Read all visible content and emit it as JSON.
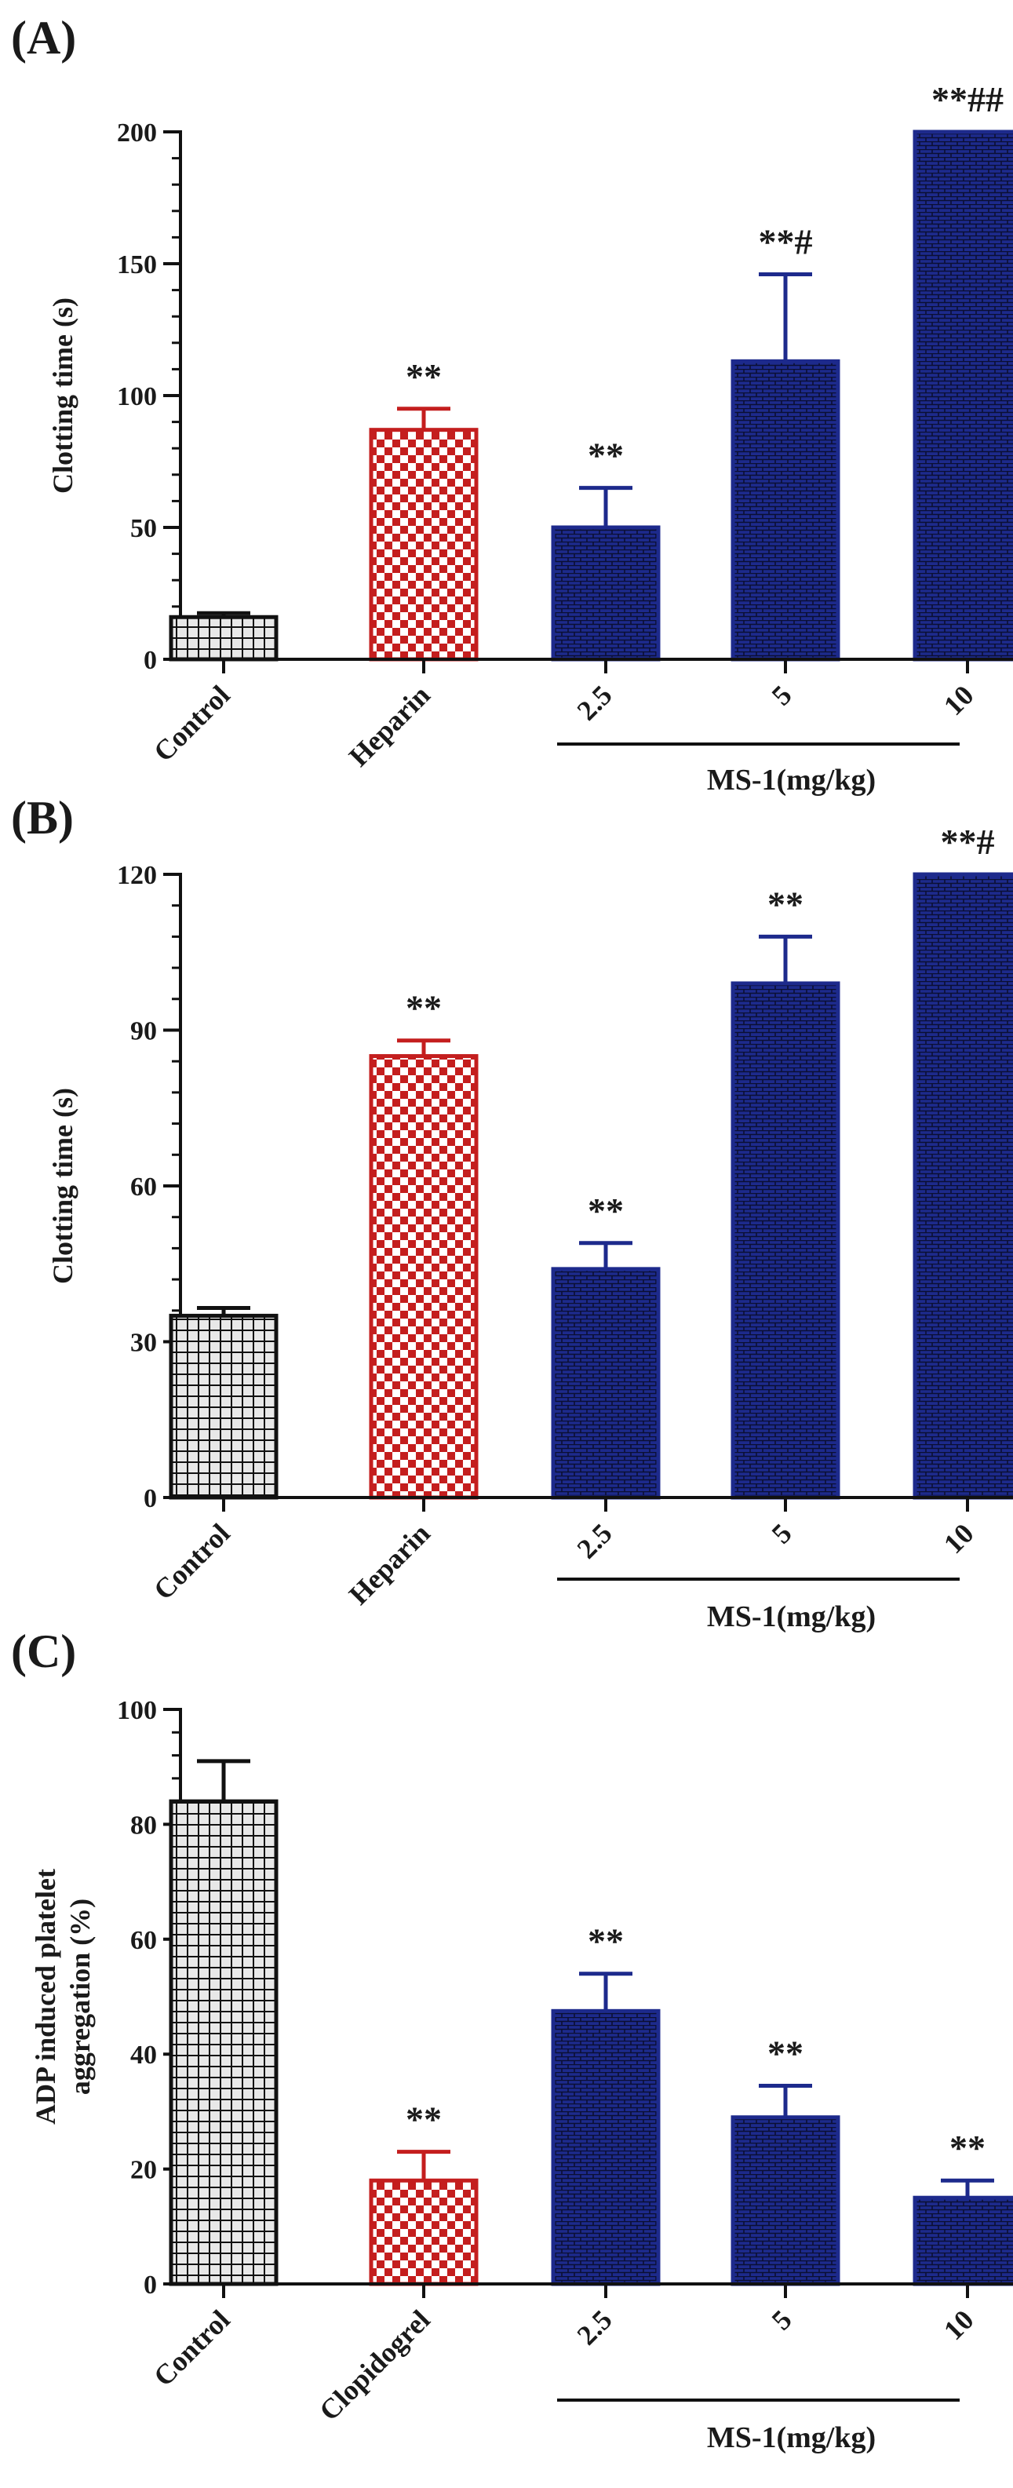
{
  "chart_data": [
    {
      "type": "bar",
      "panel_label": "(A)",
      "ylabel": "Clotting time (s)",
      "ylim": [
        0,
        200
      ],
      "yticks": [
        0,
        50,
        100,
        150,
        200
      ],
      "categories": [
        "Control",
        "Heparin",
        "2.5",
        "5",
        "10"
      ],
      "values": [
        16,
        87,
        50,
        113,
        200
      ],
      "errors": [
        1.5,
        8,
        15,
        33,
        0
      ],
      "annotations": [
        "",
        "**",
        "**",
        "**#",
        "**##"
      ],
      "group_label": "MS-1(mg/kg)"
    },
    {
      "type": "bar",
      "panel_label": "(B)",
      "ylabel": "Clotting time (s)",
      "ylim": [
        0,
        120
      ],
      "yticks": [
        0,
        30,
        60,
        90,
        120
      ],
      "categories": [
        "Control",
        "Heparin",
        "2.5",
        "5",
        "10"
      ],
      "values": [
        35,
        85,
        44,
        99,
        120
      ],
      "errors": [
        1.5,
        3,
        5,
        9,
        0
      ],
      "annotations": [
        "",
        "**",
        "**",
        "**",
        "**#"
      ],
      "group_label": "MS-1(mg/kg)"
    },
    {
      "type": "bar",
      "panel_label": "(C)",
      "ylabel": "ADP induced platelet aggregation (%)",
      "ylabel_lines": [
        "ADP induced platelet",
        "aggregation (%)"
      ],
      "ylim": [
        0,
        100
      ],
      "yticks": [
        0,
        20,
        40,
        60,
        80,
        100
      ],
      "categories": [
        "Control",
        "Clopidogrel",
        "2.5",
        "5",
        "10"
      ],
      "values": [
        84,
        18,
        47.5,
        29,
        15
      ],
      "errors": [
        7,
        5,
        6.5,
        5.5,
        3
      ],
      "annotations": [
        "",
        "**",
        "**",
        "**",
        "**"
      ],
      "group_label": "MS-1(mg/kg)"
    }
  ],
  "colors": {
    "control": "#111111",
    "reference": "#c41e1e",
    "ms1": "#1d2a8c"
  }
}
